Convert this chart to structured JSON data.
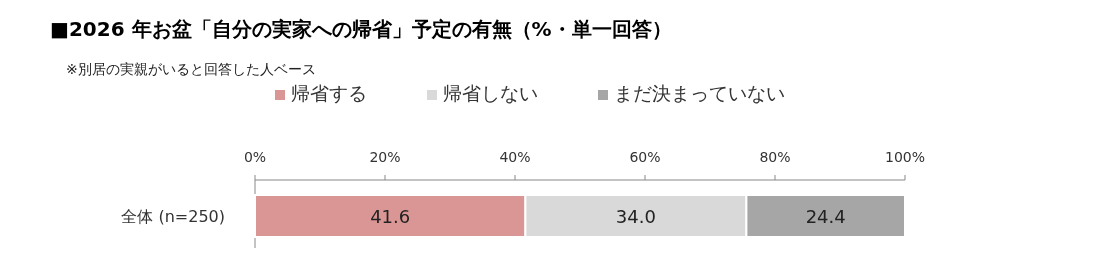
{
  "chart_data": {
    "type": "bar",
    "orientation": "horizontal",
    "stacked": true,
    "title": "■2026 年お盆「自分の実家への帰省」予定の有無（%・単一回答）",
    "subtitle": "※別居の実親がいると回答した人ベース",
    "categories": [
      "全体 (n=250)"
    ],
    "series": [
      {
        "name": "帰省する",
        "color": "#da9694",
        "values": [
          41.6
        ],
        "value_labels": [
          "41.6"
        ]
      },
      {
        "name": "帰省しない",
        "color": "#d9d9d9",
        "values": [
          34.0
        ],
        "value_labels": [
          "34.0"
        ]
      },
      {
        "name": "まだ決まっていない",
        "color": "#a6a6a6",
        "values": [
          24.4
        ],
        "value_labels": [
          "24.4"
        ]
      }
    ],
    "xlim": [
      0,
      100
    ],
    "xticks": [
      {
        "value": 0,
        "label": "0%"
      },
      {
        "value": 20,
        "label": "20%"
      },
      {
        "value": 40,
        "label": "40%"
      },
      {
        "value": 60,
        "label": "60%"
      },
      {
        "value": 80,
        "label": "80%"
      },
      {
        "value": 100,
        "label": "100%"
      }
    ],
    "legend": "top"
  }
}
